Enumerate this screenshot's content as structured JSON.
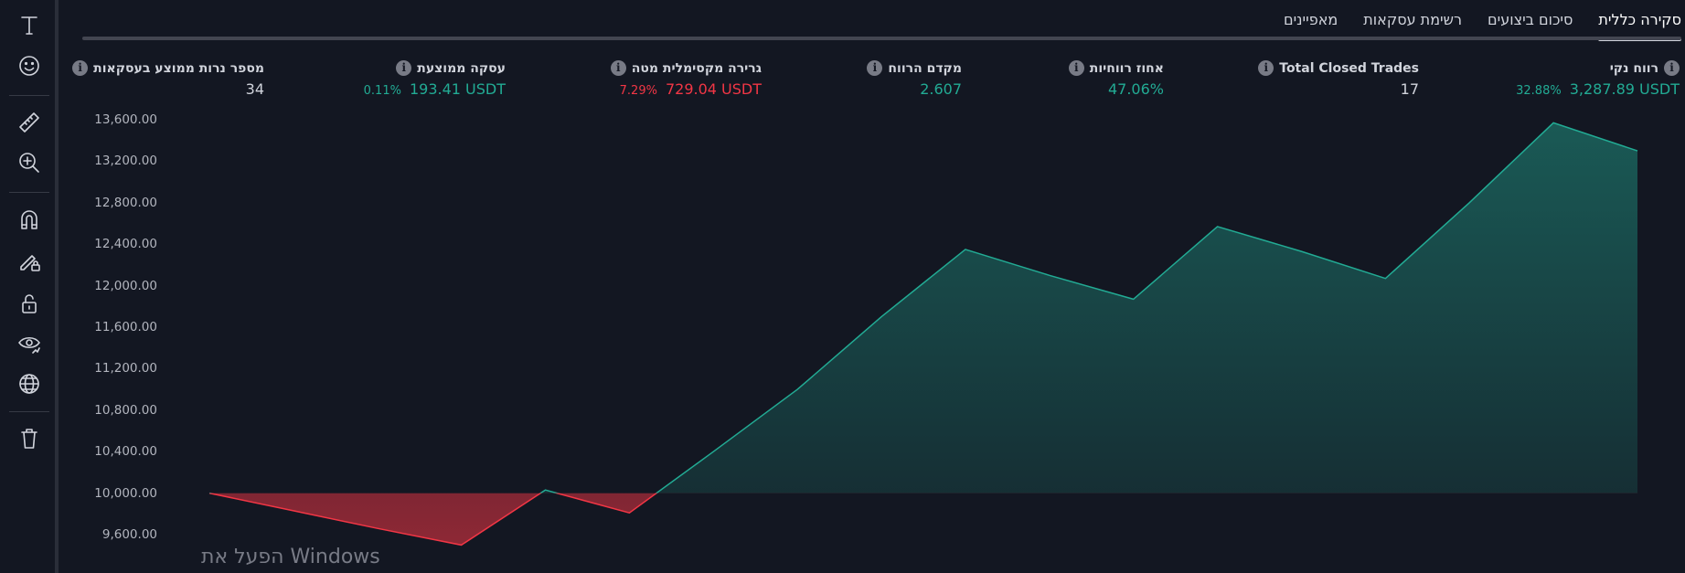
{
  "toolbar": {
    "tools": [
      {
        "name": "text-icon"
      },
      {
        "name": "emoji-icon"
      },
      {
        "name": "ruler-icon"
      },
      {
        "name": "zoom-in-icon"
      },
      {
        "name": "magnet-icon"
      },
      {
        "name": "pencil-lock-icon"
      },
      {
        "name": "unlock-icon"
      },
      {
        "name": "eye-icon"
      },
      {
        "name": "globe-icon"
      },
      {
        "name": "trash-icon"
      }
    ]
  },
  "tabs": [
    {
      "label": "סקירה כללית",
      "active": true
    },
    {
      "label": "סיכום ביצועים",
      "active": false
    },
    {
      "label": "רשימת עסקאות",
      "active": false
    },
    {
      "label": "מאפיינים",
      "active": false
    }
  ],
  "stats": {
    "net_profit": {
      "label": "רווח נקי",
      "value": "3,287.89 USDT",
      "pct": "32.88%"
    },
    "total_closed": {
      "label": "Total Closed Trades",
      "value": "17"
    },
    "percent_profitable": {
      "label": "אחוז רווחיות",
      "value": "47.06%"
    },
    "profit_factor": {
      "label": "מקדם הרווח",
      "value": "2.607"
    },
    "max_drawdown": {
      "label": "גרירה מקסימלית מטה",
      "value": "729.04 USDT",
      "pct": "7.29%"
    },
    "avg_trade": {
      "label": "עסקה ממוצעת",
      "value": "193.41 USDT",
      "pct": "0.11%"
    },
    "avg_bars": {
      "label": "מספר נרות ממוצע בעסקאות",
      "value": "34"
    }
  },
  "watermark": "הפעל את Windows",
  "colors": {
    "green": "#22ab94",
    "red": "#f23645",
    "background": "#131722"
  },
  "chart_data": {
    "type": "area",
    "baseline": 10000,
    "ylim": [
      9400,
      13800
    ],
    "yticks": [
      "13,600.00",
      "13,200.00",
      "12,800.00",
      "12,400.00",
      "12,000.00",
      "11,600.00",
      "11,200.00",
      "10,800.00",
      "10,400.00",
      "10,000.00",
      "9,600.00"
    ],
    "ytick_values": [
      13600,
      13200,
      12800,
      12400,
      12000,
      11600,
      11200,
      10800,
      10400,
      10000,
      9600
    ],
    "x": [
      0,
      1,
      2,
      3,
      4,
      5,
      6,
      7,
      8,
      9,
      10,
      11,
      12,
      13,
      14,
      15,
      16,
      17
    ],
    "values": [
      10000,
      9830,
      9660,
      9500,
      10030,
      9810,
      10400,
      11000,
      11700,
      12350,
      12100,
      11870,
      12570,
      12330,
      12070,
      12800,
      13570,
      13300
    ]
  }
}
